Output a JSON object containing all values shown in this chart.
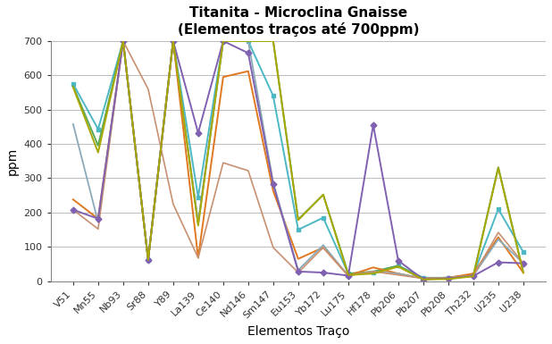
{
  "title_line1": "Titanita - Microclina Gnaisse",
  "title_line2": "(Elementos traços até 700ppm)",
  "xlabel": "Elementos Traço",
  "ylabel": "ppm",
  "ylim": [
    0,
    700
  ],
  "yticks": [
    0,
    100,
    200,
    300,
    400,
    500,
    600,
    700
  ],
  "elements": [
    "V51",
    "Mn55",
    "Nb93",
    "Sr88",
    "Y89",
    "La139",
    "Ce140",
    "Nd146",
    "Sm147",
    "Eu153",
    "Yb172",
    "Lu175",
    "Hf178",
    "Pb206",
    "Pb207",
    "Pb208",
    "Th232",
    "U235",
    "U238"
  ],
  "series": [
    {
      "color": "#4CB8C4",
      "marker": "s",
      "markersize": 3.5,
      "linewidth": 1.4,
      "values": [
        575,
        443,
        700,
        62,
        700,
        245,
        700,
        700,
        540,
        150,
        185,
        22,
        25,
        45,
        10,
        10,
        18,
        210,
        85
      ]
    },
    {
      "color": "#5BA85A",
      "marker": null,
      "markersize": 0,
      "linewidth": 1.4,
      "values": [
        568,
        395,
        700,
        62,
        700,
        168,
        700,
        700,
        700,
        180,
        252,
        22,
        28,
        45,
        8,
        10,
        16,
        332,
        26
      ]
    },
    {
      "color": "#E07820",
      "marker": null,
      "markersize": 0,
      "linewidth": 1.4,
      "values": [
        238,
        182,
        700,
        62,
        700,
        68,
        595,
        612,
        263,
        65,
        98,
        16,
        40,
        22,
        8,
        10,
        22,
        128,
        25
      ]
    },
    {
      "color": "#8BAAB8",
      "marker": null,
      "markersize": 0,
      "linewidth": 1.3,
      "values": [
        458,
        172,
        700,
        62,
        700,
        172,
        700,
        700,
        288,
        32,
        105,
        16,
        28,
        22,
        8,
        10,
        16,
        122,
        52
      ]
    },
    {
      "color": "#C89070",
      "marker": null,
      "markersize": 0,
      "linewidth": 1.2,
      "values": [
        208,
        152,
        700,
        560,
        225,
        68,
        345,
        322,
        98,
        25,
        98,
        16,
        28,
        18,
        8,
        10,
        16,
        142,
        52
      ]
    },
    {
      "color": "#8060B0",
      "marker": "D",
      "markersize": 3.5,
      "linewidth": 1.4,
      "values": [
        208,
        182,
        700,
        62,
        700,
        432,
        700,
        665,
        282,
        28,
        25,
        16,
        455,
        60,
        5,
        8,
        15,
        55,
        52
      ]
    },
    {
      "color": "#A8A800",
      "marker": null,
      "markersize": 0,
      "linewidth": 1.4,
      "values": [
        565,
        375,
        700,
        62,
        700,
        162,
        700,
        700,
        700,
        178,
        252,
        18,
        22,
        42,
        5,
        6,
        14,
        330,
        24
      ]
    }
  ],
  "background_color": "#FFFFFF",
  "grid_color": "#BBBBBB",
  "title_fontsize": 11,
  "subtitle_fontsize": 10,
  "axis_label_fontsize": 10,
  "tick_fontsize": 8
}
